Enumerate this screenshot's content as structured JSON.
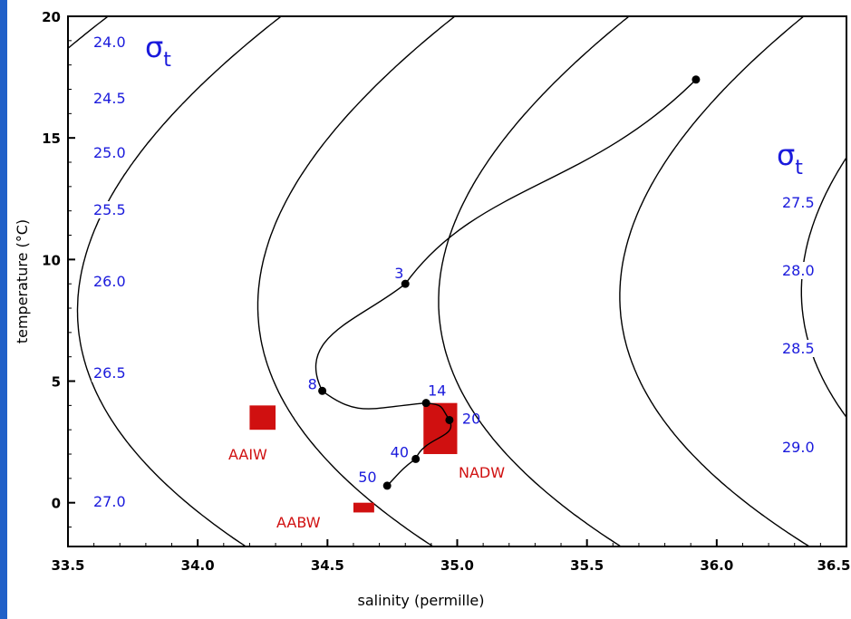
{
  "chart_data": {
    "type": "line",
    "title": "",
    "xlabel": "salinity (permille)",
    "ylabel": "temperature (°C)",
    "xlim": [
      33.5,
      36.5
    ],
    "ylim": [
      -1.8,
      20
    ],
    "x_ticks": [
      "33.5",
      "34.0",
      "34.5",
      "35.0",
      "35.5",
      "36.0",
      "36.5"
    ],
    "y_ticks": [
      "0",
      "5",
      "10",
      "15",
      "20"
    ],
    "sigma_symbol": "σ",
    "sigma_subscript": "t",
    "isopycnal_labels": [
      "24.0",
      "24.5",
      "25.0",
      "25.5",
      "26.0",
      "26.5",
      "27.0",
      "27.5",
      "28.0",
      "28.5",
      "29.0"
    ],
    "series": [
      {
        "values": [
          {
            "x": 35.92,
            "y": 17.4
          },
          {
            "x": 34.8,
            "y": 9.0
          },
          {
            "x": 34.48,
            "y": 4.6
          },
          {
            "x": 34.88,
            "y": 4.1
          },
          {
            "x": 34.97,
            "y": 3.4
          },
          {
            "x": 34.84,
            "y": 1.8
          },
          {
            "x": 34.73,
            "y": 0.7
          }
        ]
      }
    ],
    "point_labels": [
      "3",
      "8",
      "14",
      "20",
      "40",
      "50"
    ],
    "water_masses": [
      {
        "label": "AAIW",
        "s_range": [
          34.2,
          34.3
        ],
        "t_range": [
          3.0,
          4.0
        ]
      },
      {
        "label": "NADW",
        "s_range": [
          34.87,
          35.0
        ],
        "t_range": [
          2.0,
          4.1
        ]
      },
      {
        "label": "AABW",
        "s_range": [
          34.6,
          34.68
        ],
        "t_range": [
          -0.4,
          0.0
        ]
      }
    ],
    "colors": {
      "isopycnal_label": "#1a1adc",
      "water_mass": "#d01010",
      "profile": "#000000"
    },
    "grid": false
  }
}
